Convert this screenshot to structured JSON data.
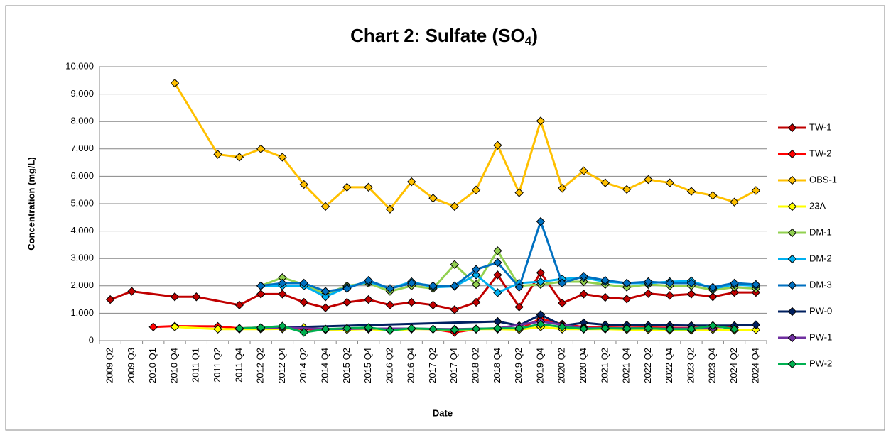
{
  "chart_data": {
    "type": "line",
    "title": [
      "Chart 2: Sulfate (SO",
      "4",
      ")"
    ],
    "x_label": "Date",
    "y_label": "Concentration (mg/L)",
    "categories": [
      "2009 Q2",
      "2009 Q3",
      "2010 Q1",
      "2010 Q4",
      "2011 Q1",
      "2011 Q2",
      "2011 Q4",
      "2012 Q2",
      "2012 Q4",
      "2014 Q2",
      "2014 Q4",
      "2015 Q2",
      "2015 Q4",
      "2016 Q2",
      "2016 Q4",
      "2017 Q2",
      "2017 Q4",
      "2018 Q2",
      "2018 Q4",
      "2019 Q2",
      "2019 Q4",
      "2020 Q2",
      "2020 Q4",
      "2021 Q2",
      "2021 Q4",
      "2022 Q2",
      "2022 Q4",
      "2023 Q2",
      "2023 Q4",
      "2024 Q2",
      "2024 Q4"
    ],
    "ylim": [
      0,
      10000
    ],
    "yticks": [
      0,
      {
        "value": 1000,
        "label": "1,000"
      },
      {
        "value": 2000,
        "label": "2,000"
      },
      {
        "value": 3000,
        "label": "3,000"
      },
      {
        "value": 4000,
        "label": "4,000"
      },
      {
        "value": 5000,
        "label": "5,000"
      },
      {
        "value": 6000,
        "label": "6,000"
      },
      {
        "value": 7000,
        "label": "7,000"
      },
      {
        "value": 8000,
        "label": "8,000"
      },
      {
        "value": 9000,
        "label": "9,000"
      },
      {
        "value": 10000,
        "label": "10,000"
      }
    ],
    "grid": true,
    "connect_gaps": true,
    "legend": "right",
    "series": [
      {
        "name": "TW-1",
        "color": "#c00000",
        "values": [
          1500,
          1800,
          null,
          1600,
          1600,
          null,
          1300,
          1700,
          1700,
          1400,
          1200,
          1400,
          1500,
          1300,
          1400,
          1300,
          1130,
          1400,
          2400,
          1230,
          2480,
          1370,
          1700,
          1580,
          1520,
          1720,
          1650,
          1700,
          1600,
          1760,
          1760
        ]
      },
      {
        "name": "TW-2",
        "color": "#ff0000",
        "values": [
          null,
          null,
          500,
          530,
          null,
          520,
          450,
          480,
          480,
          420,
          400,
          420,
          430,
          400,
          430,
          420,
          300,
          420,
          450,
          420,
          800,
          600,
          500,
          480,
          470,
          480,
          470,
          460,
          500,
          480,
          null
        ]
      },
      {
        "name": "OBS-1",
        "color": "#ffc000",
        "values": [
          null,
          null,
          null,
          9400,
          null,
          6800,
          6700,
          7000,
          6700,
          5700,
          4900,
          5600,
          5600,
          4800,
          5800,
          5200,
          4900,
          5500,
          7130,
          5400,
          8020,
          5560,
          6200,
          5760,
          5520,
          5880,
          5760,
          5450,
          5300,
          5060,
          5480
        ]
      },
      {
        "name": "23A",
        "color": "#ffff00",
        "values": [
          null,
          null,
          null,
          500,
          null,
          420,
          420,
          420,
          430,
          480,
          400,
          400,
          420,
          370,
          420,
          420,
          380,
          420,
          420,
          400,
          500,
          420,
          420,
          420,
          400,
          400,
          380,
          380,
          400,
          380,
          400
        ]
      },
      {
        "name": "DM-1",
        "color": "#92d050",
        "values": [
          null,
          null,
          null,
          null,
          null,
          null,
          null,
          2000,
          2300,
          2050,
          1700,
          2000,
          2100,
          1800,
          2000,
          1900,
          2780,
          2050,
          3280,
          2000,
          2050,
          2150,
          2150,
          2050,
          1950,
          2050,
          2000,
          2000,
          1850,
          1950,
          1900
        ]
      },
      {
        "name": "DM-2",
        "color": "#00b0f0",
        "values": [
          null,
          null,
          null,
          null,
          null,
          null,
          null,
          2000,
          2000,
          2000,
          1600,
          1950,
          2150,
          1900,
          2150,
          1950,
          1980,
          2400,
          1750,
          2100,
          2150,
          2250,
          2300,
          2150,
          2100,
          2100,
          2150,
          2180,
          1900,
          2050,
          2000
        ]
      },
      {
        "name": "DM-3",
        "color": "#0070c0",
        "values": [
          null,
          null,
          null,
          null,
          null,
          null,
          null,
          2000,
          2100,
          2100,
          1800,
          1900,
          2200,
          1900,
          2100,
          2000,
          2000,
          2600,
          2850,
          1950,
          4350,
          2100,
          2350,
          2200,
          2100,
          2150,
          2100,
          2100,
          1950,
          2100,
          2050
        ]
      },
      {
        "name": "PW-0",
        "color": "#002060",
        "values": [
          null,
          null,
          null,
          null,
          null,
          null,
          450,
          null,
          480,
          null,
          null,
          null,
          null,
          null,
          null,
          null,
          null,
          null,
          700,
          550,
          950,
          550,
          650,
          580,
          570,
          560,
          560,
          550,
          550,
          550,
          580
        ]
      },
      {
        "name": "PW-1",
        "color": "#7030a0",
        "values": [
          null,
          null,
          null,
          null,
          null,
          null,
          null,
          460,
          480,
          null,
          420,
          null,
          440,
          null,
          440,
          null,
          420,
          null,
          450,
          null,
          700,
          null,
          460,
          null,
          450,
          null,
          440,
          null,
          450,
          null,
          null
        ]
      },
      {
        "name": "PW-2",
        "color": "#00b050",
        "values": [
          null,
          null,
          null,
          null,
          null,
          null,
          450,
          480,
          530,
          300,
          420,
          450,
          480,
          380,
          450,
          420,
          400,
          430,
          450,
          450,
          600,
          500,
          430,
          450,
          440,
          450,
          420,
          420,
          550,
          420,
          null
        ]
      }
    ]
  }
}
